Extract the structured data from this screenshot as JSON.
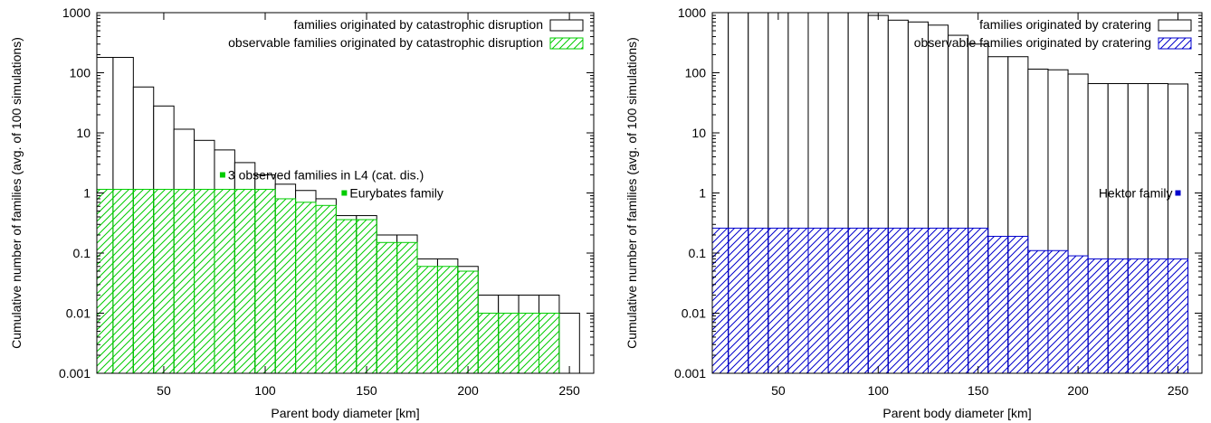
{
  "chart_data": [
    {
      "type": "bar",
      "ylog": true,
      "xlabel": "Parent body diameter [km]",
      "ylabel": "Cumulative number of families (avg. of 100 simulations)",
      "xlim": [
        17,
        262
      ],
      "ylim": [
        0.001,
        1000
      ],
      "xticks": [
        50,
        100,
        150,
        200,
        250
      ],
      "yticks": [
        0.001,
        0.01,
        0.1,
        1,
        10,
        100,
        1000
      ],
      "ytick_labels": [
        "0.001",
        "0.01",
        "0.1",
        "1",
        "10",
        "100",
        "1000"
      ],
      "legend_position": "top-right",
      "x": [
        20,
        30,
        40,
        50,
        60,
        70,
        80,
        90,
        100,
        110,
        120,
        130,
        140,
        150,
        160,
        170,
        180,
        190,
        200,
        210,
        220,
        230,
        240,
        250
      ],
      "series": [
        {
          "name": "families originated by catastrophic disruption",
          "color": "#000000",
          "fill": "none",
          "values": [
            180,
            180,
            58,
            28,
            11.5,
            7.5,
            5.2,
            3.2,
            2.0,
            1.4,
            1.1,
            0.8,
            0.42,
            0.42,
            0.2,
            0.2,
            0.08,
            0.08,
            0.06,
            0.02,
            0.02,
            0.02,
            0.02,
            0.01
          ]
        },
        {
          "name": "observable families originated by catastrophic disruption",
          "color": "#00cc00",
          "fill": "hatch",
          "values": [
            1.15,
            1.15,
            1.15,
            1.15,
            1.15,
            1.15,
            1.15,
            1.15,
            1.15,
            0.8,
            0.7,
            0.62,
            0.36,
            0.36,
            0.15,
            0.15,
            0.06,
            0.06,
            0.05,
            0.01,
            0.01,
            0.01,
            0.01,
            null
          ]
        }
      ],
      "annotations": [
        {
          "text": "3 observed families in L4 (cat. dis.)",
          "x": 79,
          "y": 2.0,
          "color": "#00cc00"
        },
        {
          "text": "Eurybates family",
          "x": 139,
          "y": 1.0,
          "color": "#00cc00"
        }
      ]
    },
    {
      "type": "bar",
      "ylog": true,
      "xlabel": "Parent body diameter [km]",
      "ylabel": "Cumulative number of families (avg. of 100 simulations)",
      "xlim": [
        17,
        262
      ],
      "ylim": [
        0.001,
        1000
      ],
      "xticks": [
        50,
        100,
        150,
        200,
        250
      ],
      "yticks": [
        0.001,
        0.01,
        0.1,
        1,
        10,
        100,
        1000
      ],
      "ytick_labels": [
        "0.001",
        "0.01",
        "0.1",
        "1",
        "10",
        "100",
        "1000"
      ],
      "legend_position": "top-right",
      "x": [
        20,
        30,
        40,
        50,
        60,
        70,
        80,
        90,
        100,
        110,
        120,
        130,
        140,
        150,
        160,
        170,
        180,
        190,
        200,
        210,
        220,
        230,
        240,
        250
      ],
      "series": [
        {
          "name": "families originated by cratering",
          "color": "#000000",
          "fill": "none",
          "values": [
            1000,
            1000,
            1000,
            1000,
            1000,
            1000,
            1000,
            1000,
            900,
            750,
            700,
            620,
            420,
            300,
            185,
            185,
            115,
            112,
            95,
            66,
            66,
            66,
            66,
            65
          ]
        },
        {
          "name": "observable families originated by cratering",
          "color": "#0000cc",
          "fill": "hatch",
          "values": [
            0.26,
            0.26,
            0.26,
            0.26,
            0.26,
            0.26,
            0.26,
            0.26,
            0.26,
            0.26,
            0.26,
            0.26,
            0.26,
            0.26,
            0.19,
            0.19,
            0.11,
            0.11,
            0.09,
            0.08,
            0.08,
            0.08,
            0.08,
            0.08
          ]
        }
      ],
      "annotations": [
        {
          "text": "Hektor family",
          "x": 250,
          "y": 1.0,
          "color": "#0000cc",
          "align": "end"
        }
      ]
    }
  ]
}
